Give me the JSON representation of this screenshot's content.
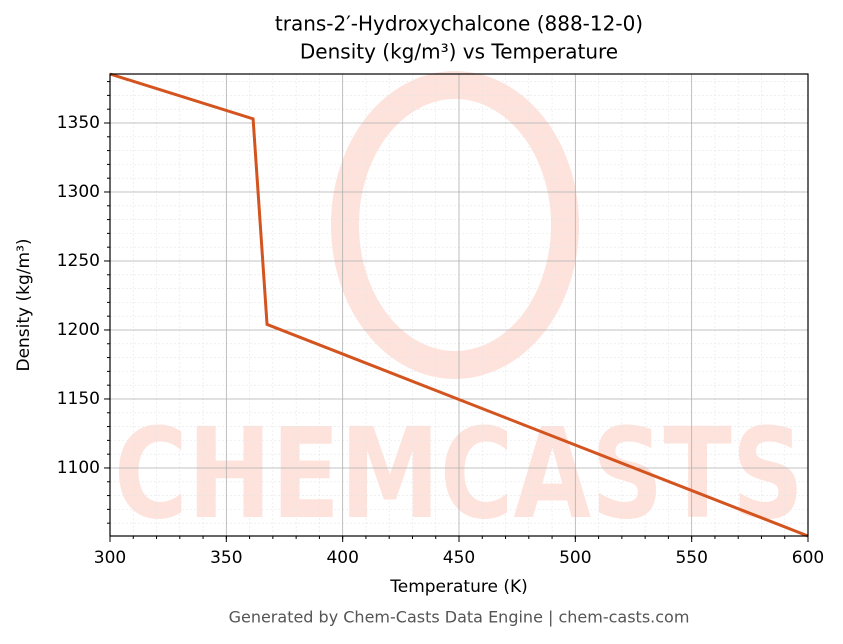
{
  "chart_data": {
    "type": "line",
    "title": "trans-2′-Hydroxychalcone (888-12-0)",
    "subtitle": "Density (kg/m³) vs Temperature",
    "x_label": "Temperature (K)",
    "y_label": "Density (kg/m³)",
    "footer": "Generated by Chem-Casts Data Engine | chem-casts.com",
    "watermark": "CHEMCASTS",
    "x": [
      300,
      361.5,
      367.5,
      600
    ],
    "series": [
      {
        "name": "Density",
        "color": "#d4541f",
        "values": [
          1385.5,
          1353,
          1204,
          1050.7
        ]
      }
    ],
    "xlim": [
      300,
      600
    ],
    "xticks": [
      300,
      350,
      400,
      450,
      500,
      550,
      600
    ],
    "ylim": [
      1050.7,
      1385.5
    ],
    "yticks": [
      1100,
      1150,
      1200,
      1250,
      1300,
      1350
    ],
    "grid": true,
    "minor_grid": true
  }
}
